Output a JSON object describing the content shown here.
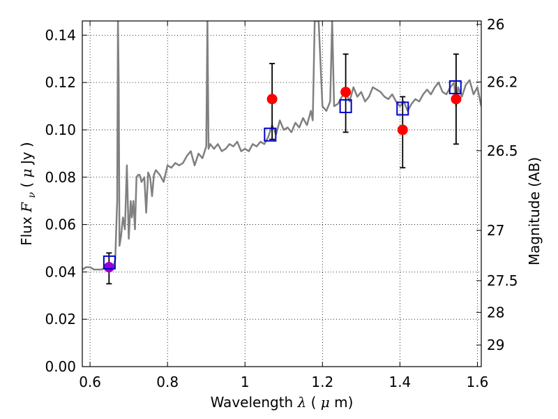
{
  "chart_data": {
    "type": "scatter",
    "title": "",
    "xlabel": {
      "prefix": "Wavelength ",
      "symbol": "λ",
      "paren_open": " (",
      "unit_symbol": "μ",
      "unit_rest": "m)"
    },
    "ylabel": {
      "prefix": "Flux ",
      "symbol": "F",
      "subscript": "ν",
      "paren_open": " ( ",
      "unit_symbol": "μ",
      "unit_rest": "Jy )"
    },
    "y2label": "Magnitude (AB)",
    "xlim": [
      0.58,
      1.61
    ],
    "ylim": [
      0.0,
      0.146
    ],
    "grid": true,
    "grid_style": "dotted",
    "xticks": [
      {
        "value": 0.6,
        "label": "0.6"
      },
      {
        "value": 0.8,
        "label": "0.8"
      },
      {
        "value": 1.0,
        "label": "1"
      },
      {
        "value": 1.2,
        "label": "1.2"
      },
      {
        "value": 1.4,
        "label": "1.4"
      },
      {
        "value": 1.6,
        "label": "1.6"
      }
    ],
    "yticks": [
      {
        "value": 0.0,
        "label": "0.00"
      },
      {
        "value": 0.02,
        "label": "0.02"
      },
      {
        "value": 0.04,
        "label": "0.04"
      },
      {
        "value": 0.06,
        "label": "0.06"
      },
      {
        "value": 0.08,
        "label": "0.08"
      },
      {
        "value": 0.1,
        "label": "0.10"
      },
      {
        "value": 0.12,
        "label": "0.12"
      },
      {
        "value": 0.14,
        "label": "0.14"
      }
    ],
    "y2ticks": [
      {
        "value": 26.0,
        "label": "26"
      },
      {
        "value": 26.2,
        "label": "26.2"
      },
      {
        "value": 26.5,
        "label": "26.5"
      },
      {
        "value": 27.0,
        "label": "27"
      },
      {
        "value": 27.5,
        "label": "27.5"
      },
      {
        "value": 28.0,
        "label": "28"
      },
      {
        "value": 29.0,
        "label": "29"
      }
    ],
    "series": [
      {
        "kind": "line",
        "color": "#808080",
        "x": [
          0.58,
          0.59,
          0.6,
          0.61,
          0.62,
          0.63,
          0.64,
          0.65,
          0.66,
          0.665,
          0.67,
          0.672,
          0.674,
          0.676,
          0.68,
          0.685,
          0.69,
          0.695,
          0.7,
          0.705,
          0.708,
          0.712,
          0.716,
          0.72,
          0.724,
          0.728,
          0.733,
          0.74,
          0.745,
          0.75,
          0.755,
          0.76,
          0.765,
          0.77,
          0.775,
          0.78,
          0.79,
          0.8,
          0.81,
          0.82,
          0.83,
          0.84,
          0.85,
          0.86,
          0.87,
          0.88,
          0.89,
          0.9,
          0.903,
          0.906,
          0.91,
          0.92,
          0.93,
          0.94,
          0.95,
          0.96,
          0.97,
          0.98,
          0.99,
          1.0,
          1.01,
          1.02,
          1.03,
          1.04,
          1.05,
          1.06,
          1.07,
          1.08,
          1.09,
          1.1,
          1.11,
          1.12,
          1.13,
          1.14,
          1.15,
          1.16,
          1.17,
          1.175,
          1.18,
          1.19,
          1.2,
          1.21,
          1.22,
          1.225,
          1.23,
          1.24,
          1.25,
          1.26,
          1.27,
          1.28,
          1.29,
          1.3,
          1.31,
          1.32,
          1.33,
          1.34,
          1.35,
          1.36,
          1.37,
          1.38,
          1.39,
          1.4,
          1.41,
          1.42,
          1.43,
          1.44,
          1.45,
          1.46,
          1.47,
          1.48,
          1.49,
          1.5,
          1.51,
          1.52,
          1.53,
          1.54,
          1.545,
          1.55,
          1.56,
          1.57,
          1.58,
          1.59,
          1.6,
          1.61
        ],
        "y": [
          0.041,
          0.042,
          0.042,
          0.041,
          0.041,
          0.041,
          0.042,
          0.041,
          0.042,
          0.045,
          0.07,
          0.146,
          0.12,
          0.051,
          0.055,
          0.063,
          0.058,
          0.085,
          0.054,
          0.07,
          0.063,
          0.07,
          0.058,
          0.08,
          0.081,
          0.081,
          0.078,
          0.08,
          0.065,
          0.082,
          0.08,
          0.072,
          0.081,
          0.083,
          0.082,
          0.081,
          0.078,
          0.085,
          0.084,
          0.086,
          0.085,
          0.086,
          0.089,
          0.091,
          0.085,
          0.09,
          0.088,
          0.093,
          0.146,
          0.092,
          0.094,
          0.092,
          0.094,
          0.091,
          0.092,
          0.094,
          0.093,
          0.095,
          0.091,
          0.092,
          0.091,
          0.094,
          0.093,
          0.095,
          0.094,
          0.097,
          0.102,
          0.098,
          0.104,
          0.1,
          0.101,
          0.099,
          0.103,
          0.101,
          0.105,
          0.102,
          0.108,
          0.104,
          0.146,
          0.146,
          0.11,
          0.108,
          0.112,
          0.146,
          0.11,
          0.111,
          0.114,
          0.116,
          0.112,
          0.118,
          0.114,
          0.116,
          0.112,
          0.114,
          0.118,
          0.117,
          0.116,
          0.114,
          0.113,
          0.115,
          0.112,
          0.11,
          0.112,
          0.108,
          0.111,
          0.113,
          0.112,
          0.115,
          0.117,
          0.115,
          0.118,
          0.12,
          0.116,
          0.115,
          0.118,
          0.12,
          0.11,
          0.118,
          0.114,
          0.119,
          0.121,
          0.115,
          0.118,
          0.11
        ]
      },
      {
        "kind": "scatter",
        "marker": "circle",
        "color": "#ff0000",
        "x": [
          0.649,
          1.07,
          1.26,
          1.407,
          1.545
        ],
        "y": [
          0.042,
          0.113,
          0.116,
          0.1,
          0.113
        ],
        "colors": [
          "#9900cc",
          "#ff0000",
          "#ff0000",
          "#ff0000",
          "#ff0000"
        ],
        "yerr_low": [
          0.035,
          0.096,
          0.099,
          0.084,
          0.094
        ],
        "yerr_high": [
          0.048,
          0.128,
          0.132,
          0.114,
          0.132
        ]
      },
      {
        "kind": "scatter",
        "marker": "open-square",
        "color": "#0000cc",
        "x": [
          0.65,
          1.065,
          1.26,
          1.407,
          1.543
        ],
        "y": [
          0.044,
          0.098,
          0.11,
          0.109,
          0.118
        ]
      }
    ]
  }
}
